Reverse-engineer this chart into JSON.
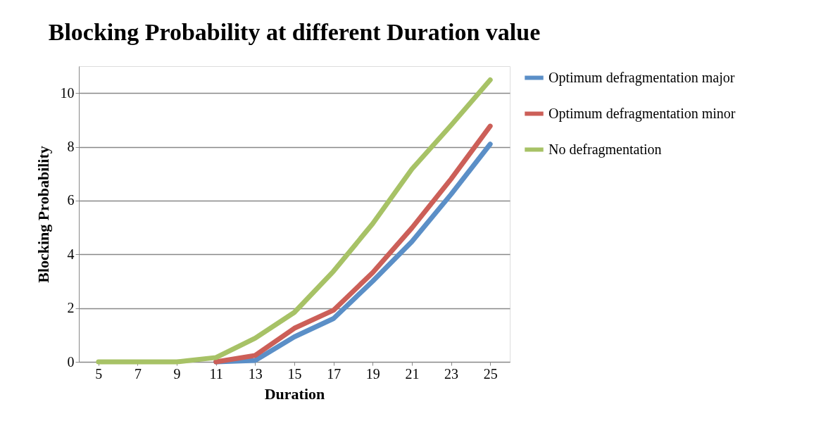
{
  "chart_data": {
    "type": "line",
    "title": "Blocking Probability at different Duration value",
    "xlabel": "Duration",
    "ylabel": "Blocking Probability",
    "categories": [
      "5",
      "7",
      "9",
      "11",
      "13",
      "15",
      "17",
      "19",
      "21",
      "23",
      "25"
    ],
    "series": [
      {
        "name": "Optimum defragmentation major",
        "color": "#5b8fc7",
        "values": [
          null,
          null,
          null,
          0,
          0.05,
          0.93,
          1.61,
          3.0,
          4.47,
          6.23,
          8.1
        ]
      },
      {
        "name": "Optimum defragmentation minor",
        "color": "#cc5f58",
        "values": [
          null,
          null,
          null,
          0,
          0.24,
          1.25,
          1.92,
          3.32,
          4.98,
          6.8,
          8.77
        ]
      },
      {
        "name": "No defragmentation",
        "color": "#a7c266",
        "values": [
          0,
          0,
          0,
          0.16,
          0.88,
          1.84,
          3.37,
          5.14,
          7.17,
          8.8,
          10.49
        ]
      }
    ],
    "ylim": [
      0,
      11
    ],
    "yticks": [
      0,
      2,
      4,
      6,
      8,
      10
    ],
    "grid": "y",
    "legend": "right",
    "marker": "none",
    "line_style": "solid"
  }
}
